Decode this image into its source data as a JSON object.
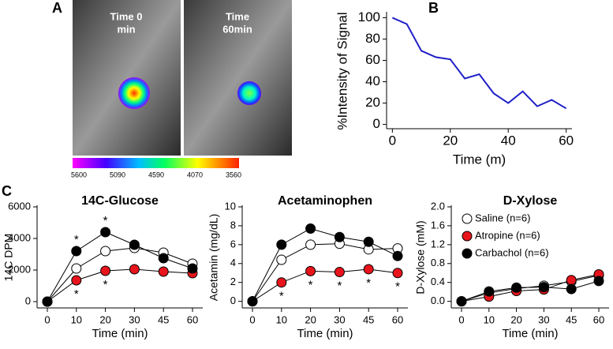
{
  "panel_labels": [
    "A",
    "B",
    "C"
  ],
  "images": [
    [
      "Time 0",
      "min"
    ],
    [
      "Time",
      "60min"
    ]
  ],
  "colorbar": {
    "ticks": [
      5600,
      5090,
      4590,
      4070,
      3560
    ]
  },
  "chart_data": [
    {
      "type": "line",
      "xlabel": "Time (m)",
      "ylabel": "%Intensity of Signal",
      "x": [
        0,
        5,
        10,
        15,
        20,
        25,
        30,
        35,
        40,
        45,
        50,
        55,
        60
      ],
      "series": [
        {
          "color": "#1f1fc8",
          "values": [
            100,
            94,
            69,
            63,
            61,
            43,
            47,
            29,
            20,
            31,
            17,
            23,
            15
          ]
        }
      ],
      "xlim": [
        -2,
        62
      ],
      "xticks": [
        0,
        20,
        40,
        60
      ],
      "ylim": [
        -4,
        104
      ],
      "yticks": [
        0,
        20,
        40,
        60,
        80,
        100
      ]
    },
    {
      "type": "line",
      "title": "14C-Glucose",
      "xlabel": "Time (min)",
      "ylabel": "14C DPM",
      "categories": [
        "0",
        "10",
        "20",
        "30",
        "45",
        "60"
      ],
      "series": [
        {
          "name": "Saline (n=6)",
          "color": "#ffffff",
          "values": [
            0,
            2100,
            3200,
            3400,
            3100,
            2400
          ],
          "annotations": [
            null,
            null,
            null,
            null,
            null,
            null
          ]
        },
        {
          "name": "Atropine (n=6)",
          "color": "#e8141c",
          "values": [
            0,
            1350,
            1950,
            2050,
            1900,
            1800
          ],
          "annotations": [
            null,
            "*",
            "*",
            null,
            null,
            null
          ]
        },
        {
          "name": "Carbachol (n=6)",
          "color": "#000000",
          "values": [
            0,
            3200,
            4400,
            3600,
            2750,
            2100
          ],
          "annotations": [
            null,
            "*",
            "*",
            null,
            null,
            null
          ]
        }
      ],
      "ylim": [
        -400,
        6000
      ],
      "yticks": [
        0,
        2000,
        4000,
        6000
      ]
    },
    {
      "type": "line",
      "title": "Acetaminophen",
      "xlabel": "Time (min)",
      "ylabel": "Acetamin (mg/dL)",
      "categories": [
        "0",
        "10",
        "20",
        "30",
        "45",
        "60"
      ],
      "series": [
        {
          "name": "Saline (n=6)",
          "color": "#ffffff",
          "values": [
            0,
            4.4,
            6.0,
            6.1,
            5.5,
            5.6
          ],
          "annotations": [
            null,
            null,
            null,
            null,
            null,
            null
          ]
        },
        {
          "name": "Atropine (n=6)",
          "color": "#e8141c",
          "values": [
            0,
            2.0,
            3.2,
            3.1,
            3.4,
            3.0
          ],
          "annotations": [
            null,
            "*",
            "*",
            "*",
            "*",
            "*"
          ]
        },
        {
          "name": "Carbachol (n=6)",
          "color": "#000000",
          "values": [
            0,
            6.0,
            7.7,
            6.8,
            6.3,
            4.8
          ],
          "annotations": [
            null,
            null,
            null,
            null,
            null,
            null
          ]
        }
      ],
      "ylim": [
        -0.7,
        10
      ],
      "yticks": [
        0,
        2,
        4,
        6,
        8,
        10
      ]
    },
    {
      "type": "line",
      "title": "D-Xylose",
      "xlabel": "Time (min)",
      "ylabel": "D-Xylose (mM)",
      "legend": "upper left",
      "categories": [
        "0",
        "10",
        "20",
        "30",
        "45",
        "60"
      ],
      "series": [
        {
          "name": "Saline (n=6)",
          "color": "#ffffff",
          "values": [
            0,
            0.18,
            0.27,
            0.33,
            0.42,
            0.55
          ]
        },
        {
          "name": "Atropine (n=6)",
          "color": "#e8141c",
          "values": [
            0,
            0.1,
            0.22,
            0.25,
            0.45,
            0.57
          ]
        },
        {
          "name": "Carbachol (n=6)",
          "color": "#000000",
          "values": [
            0,
            0.21,
            0.29,
            0.3,
            0.26,
            0.43
          ]
        }
      ],
      "ylim": [
        -0.14,
        2.0
      ],
      "yticks": [
        {
          "value": 0,
          "label": "0.0"
        },
        {
          "value": 0.4,
          "label": "0.4"
        },
        {
          "value": 0.8,
          "label": "0.8"
        },
        {
          "value": 1.2,
          "label": "1.2"
        },
        {
          "value": 1.6,
          "label": "1.6"
        },
        {
          "value": 2,
          "label": "2.0"
        }
      ]
    }
  ]
}
